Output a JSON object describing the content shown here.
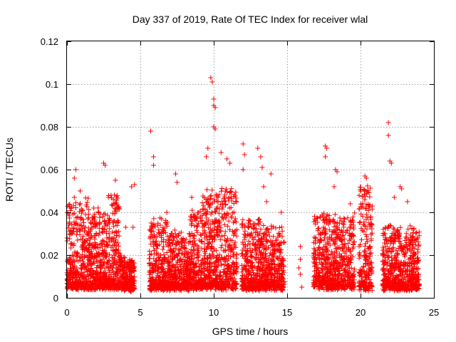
{
  "chart_data": {
    "type": "scatter",
    "title": "Day 337 of 2019, Rate Of TEC Index for receiver wlal",
    "xlabel": "GPS time / hours",
    "ylabel": "ROTI / TECUs",
    "xlim": [
      0,
      25
    ],
    "ylim": [
      0,
      0.12
    ],
    "xticks": [
      0,
      5,
      10,
      15,
      20,
      25
    ],
    "xtick_labels": [
      "0",
      "5",
      "10",
      "15",
      "20",
      "25"
    ],
    "yticks": [
      0,
      0.02,
      0.04,
      0.06,
      0.08,
      0.1,
      0.12
    ],
    "ytick_labels": [
      "0",
      "0.02",
      "0.04",
      "0.06",
      "0.08",
      "0.1",
      "0.12"
    ],
    "grid": true,
    "marker": "+",
    "color": "#ff0000",
    "series": [
      {
        "name": "ROTI",
        "density_segments": [
          {
            "x": [
              0.0,
              1.5
            ],
            "base": 0.008,
            "peak": 0.045
          },
          {
            "x": [
              1.5,
              2.8
            ],
            "base": 0.008,
            "peak": 0.04
          },
          {
            "x": [
              2.8,
              3.6
            ],
            "base": 0.008,
            "peak": 0.047
          },
          {
            "x": [
              3.6,
              4.0
            ],
            "base": 0.007,
            "peak": 0.018
          },
          {
            "x": [
              4.0,
              4.6
            ],
            "base": 0.006,
            "peak": 0.016
          },
          {
            "x": [
              5.6,
              7.0
            ],
            "base": 0.007,
            "peak": 0.035
          },
          {
            "x": [
              7.0,
              8.4
            ],
            "base": 0.007,
            "peak": 0.03
          },
          {
            "x": [
              8.4,
              9.2
            ],
            "base": 0.007,
            "peak": 0.04
          },
          {
            "x": [
              9.2,
              11.6
            ],
            "base": 0.008,
            "peak": 0.05
          },
          {
            "x": [
              11.9,
              13.2
            ],
            "base": 0.007,
            "peak": 0.035
          },
          {
            "x": [
              13.2,
              14.8
            ],
            "base": 0.007,
            "peak": 0.032
          },
          {
            "x": [
              16.8,
              19.6
            ],
            "base": 0.008,
            "peak": 0.038
          },
          {
            "x": [
              19.9,
              20.8
            ],
            "base": 0.007,
            "peak": 0.05
          },
          {
            "x": [
              21.5,
              24.0
            ],
            "base": 0.007,
            "peak": 0.032
          }
        ],
        "points": [
          [
            0.5,
            0.047
          ],
          [
            0.5,
            0.056
          ],
          [
            0.6,
            0.06
          ],
          [
            0.9,
            0.05
          ],
          [
            2.5,
            0.063
          ],
          [
            2.6,
            0.062
          ],
          [
            3.3,
            0.055
          ],
          [
            3.0,
            0.048
          ],
          [
            4.4,
            0.052
          ],
          [
            4.6,
            0.053
          ],
          [
            4.0,
            0.033
          ],
          [
            4.5,
            0.033
          ],
          [
            5.7,
            0.078
          ],
          [
            5.9,
            0.066
          ],
          [
            5.9,
            0.062
          ],
          [
            6.8,
            0.04
          ],
          [
            7.4,
            0.058
          ],
          [
            7.5,
            0.054
          ],
          [
            8.5,
            0.047
          ],
          [
            9.5,
            0.066
          ],
          [
            9.6,
            0.07
          ],
          [
            9.8,
            0.103
          ],
          [
            9.9,
            0.101
          ],
          [
            10.0,
            0.093
          ],
          [
            10.0,
            0.09
          ],
          [
            10.1,
            0.089
          ],
          [
            10.0,
            0.08
          ],
          [
            10.1,
            0.079
          ],
          [
            10.5,
            0.068
          ],
          [
            10.9,
            0.065
          ],
          [
            11.1,
            0.063
          ],
          [
            12.0,
            0.072
          ],
          [
            12.1,
            0.067
          ],
          [
            12.0,
            0.06
          ],
          [
            13.0,
            0.07
          ],
          [
            13.2,
            0.066
          ],
          [
            13.3,
            0.061
          ],
          [
            13.4,
            0.052
          ],
          [
            13.6,
            0.045
          ],
          [
            13.9,
            0.058
          ],
          [
            14.6,
            0.04
          ],
          [
            15.9,
            0.024
          ],
          [
            15.9,
            0.018
          ],
          [
            15.8,
            0.014
          ],
          [
            15.9,
            0.011
          ],
          [
            16.0,
            0.005
          ],
          [
            17.6,
            0.071
          ],
          [
            17.7,
            0.07
          ],
          [
            17.6,
            0.066
          ],
          [
            18.3,
            0.06
          ],
          [
            18.4,
            0.059
          ],
          [
            18.2,
            0.052
          ],
          [
            19.3,
            0.044
          ],
          [
            20.3,
            0.057
          ],
          [
            20.4,
            0.056
          ],
          [
            20.3,
            0.05
          ],
          [
            21.9,
            0.082
          ],
          [
            21.9,
            0.076
          ],
          [
            22.0,
            0.064
          ],
          [
            22.1,
            0.063
          ],
          [
            22.3,
            0.047
          ],
          [
            22.7,
            0.052
          ],
          [
            22.8,
            0.051
          ],
          [
            23.2,
            0.045
          ],
          [
            23.9,
            0.028
          ]
        ]
      }
    ]
  }
}
